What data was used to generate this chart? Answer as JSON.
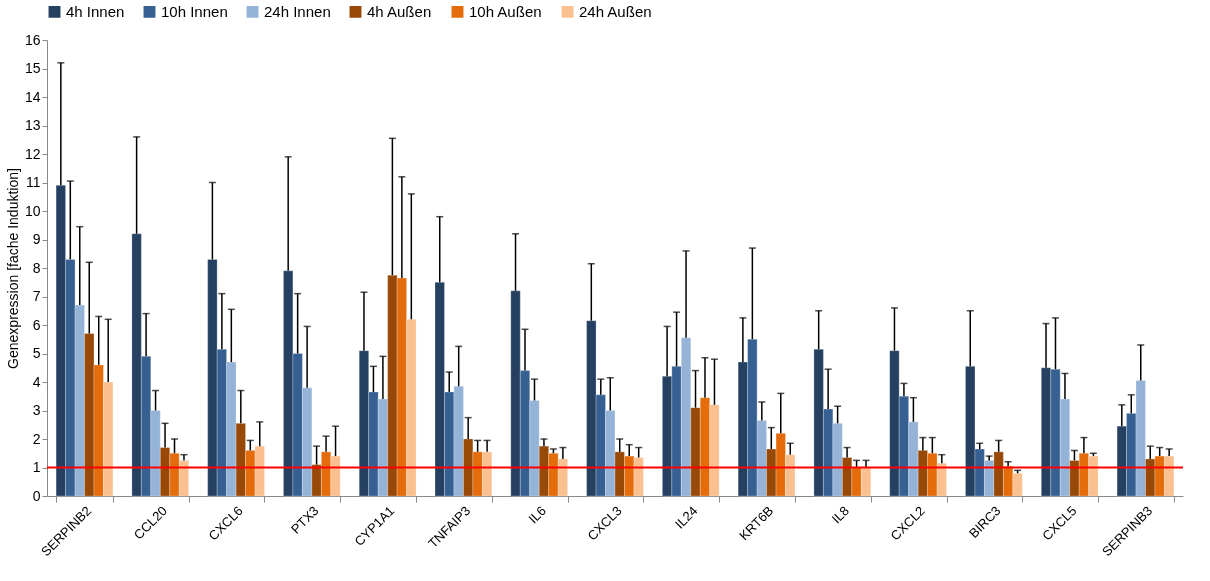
{
  "chart_data": {
    "type": "bar",
    "ylabel": "Genexpression [fache Induktion]",
    "categories": [
      "SERPINB2",
      "CCL20",
      "CXCL6",
      "PTX3",
      "CYP1A1",
      "TNFAIP3",
      "IL6",
      "CXCL3",
      "IL24",
      "KRT6B",
      "IL8",
      "CXCL2",
      "BIRC3",
      "CXCL5",
      "SERPINB3"
    ],
    "series": [
      {
        "name": "4h Innen",
        "color": "#254061",
        "values": [
          10.9,
          9.2,
          8.3,
          7.9,
          5.1,
          7.5,
          7.2,
          6.15,
          4.2,
          4.7,
          5.15,
          5.1,
          4.55,
          4.5,
          2.45
        ],
        "errors": [
          [
            10.9,
            15.2
          ],
          [
            9.2,
            12.6
          ],
          [
            8.3,
            11.0
          ],
          [
            7.9,
            11.9
          ],
          [
            5.1,
            7.15
          ],
          [
            7.5,
            9.8
          ],
          [
            7.2,
            9.2
          ],
          [
            6.15,
            8.15
          ],
          [
            4.2,
            5.95
          ],
          [
            4.7,
            6.25
          ],
          [
            5.15,
            6.5
          ],
          [
            5.1,
            6.6
          ],
          [
            4.55,
            6.5
          ],
          [
            4.5,
            6.05
          ],
          [
            2.45,
            3.2
          ]
        ]
      },
      {
        "name": "10h Innen",
        "color": "#376092",
        "values": [
          8.3,
          4.9,
          5.15,
          5.0,
          3.65,
          3.65,
          4.4,
          3.55,
          4.55,
          5.5,
          3.05,
          3.5,
          1.65,
          4.45,
          2.9
        ],
        "errors": [
          [
            8.3,
            11.05
          ],
          [
            4.9,
            6.4
          ],
          [
            5.15,
            7.1
          ],
          [
            5.0,
            7.1
          ],
          [
            3.65,
            4.55
          ],
          [
            3.65,
            4.35
          ],
          [
            4.4,
            5.85
          ],
          [
            3.55,
            4.1
          ],
          [
            4.55,
            6.45
          ],
          [
            5.5,
            8.7
          ],
          [
            3.05,
            4.45
          ],
          [
            3.5,
            3.95
          ],
          [
            1.65,
            1.85
          ],
          [
            4.45,
            6.25
          ],
          [
            2.9,
            3.55
          ]
        ]
      },
      {
        "name": "24h Innen",
        "color": "#95b3d7",
        "values": [
          6.7,
          3.0,
          4.7,
          3.8,
          3.4,
          3.85,
          3.35,
          3.0,
          5.55,
          2.65,
          2.55,
          2.6,
          1.25,
          3.4,
          4.05
        ],
        "errors": [
          [
            6.7,
            9.45
          ],
          [
            3.0,
            3.7
          ],
          [
            4.7,
            6.55
          ],
          [
            3.8,
            5.95
          ],
          [
            3.4,
            4.9
          ],
          [
            3.85,
            5.25
          ],
          [
            3.35,
            4.1
          ],
          [
            3.0,
            4.15
          ],
          [
            5.55,
            8.6
          ],
          [
            2.65,
            3.3
          ],
          [
            2.55,
            3.15
          ],
          [
            2.6,
            3.45
          ],
          [
            1.25,
            1.4
          ],
          [
            3.4,
            4.3
          ],
          [
            4.05,
            5.3
          ]
        ]
      },
      {
        "name": "4h Außen",
        "color": "#984807",
        "values": [
          5.7,
          1.7,
          2.55,
          1.1,
          7.75,
          2.0,
          1.75,
          1.55,
          3.1,
          1.65,
          1.35,
          1.6,
          1.55,
          1.25,
          1.3
        ],
        "errors": [
          [
            5.7,
            8.2
          ],
          [
            1.7,
            2.55
          ],
          [
            2.55,
            3.7
          ],
          [
            1.1,
            1.75
          ],
          [
            7.75,
            12.55
          ],
          [
            2.0,
            2.75
          ],
          [
            1.75,
            2.0
          ],
          [
            1.55,
            2.0
          ],
          [
            3.1,
            4.4
          ],
          [
            1.65,
            2.4
          ],
          [
            1.35,
            1.7
          ],
          [
            1.6,
            2.05
          ],
          [
            1.55,
            1.95
          ],
          [
            1.25,
            1.6
          ],
          [
            1.3,
            1.75
          ]
        ]
      },
      {
        "name": "10h Außen",
        "color": "#e46c0a",
        "values": [
          4.6,
          1.5,
          1.6,
          1.55,
          7.65,
          1.55,
          1.5,
          1.4,
          3.45,
          2.2,
          1.0,
          1.5,
          1.05,
          1.5,
          1.4
        ],
        "errors": [
          [
            4.6,
            6.3
          ],
          [
            1.5,
            2.0
          ],
          [
            1.6,
            1.95
          ],
          [
            1.55,
            2.1
          ],
          [
            7.65,
            11.2
          ],
          [
            1.55,
            1.95
          ],
          [
            1.5,
            1.65
          ],
          [
            1.4,
            1.8
          ],
          [
            3.45,
            4.85
          ],
          [
            2.2,
            3.6
          ],
          [
            1.0,
            1.25
          ],
          [
            1.5,
            2.05
          ],
          [
            1.05,
            1.2
          ],
          [
            1.5,
            2.05
          ],
          [
            1.4,
            1.7
          ]
        ]
      },
      {
        "name": "24h Außen",
        "color": "#fac090",
        "values": [
          4.0,
          1.25,
          1.75,
          1.4,
          6.2,
          1.55,
          1.3,
          1.35,
          3.2,
          1.45,
          1.0,
          1.15,
          0.8,
          1.4,
          1.4
        ],
        "errors": [
          [
            4.0,
            6.2
          ],
          [
            1.25,
            1.45
          ],
          [
            1.75,
            2.6
          ],
          [
            1.4,
            2.45
          ],
          [
            6.2,
            10.6
          ],
          [
            1.55,
            1.95
          ],
          [
            1.3,
            1.7
          ],
          [
            1.35,
            1.7
          ],
          [
            3.2,
            4.8
          ],
          [
            1.45,
            1.85
          ],
          [
            1.0,
            1.25
          ],
          [
            1.15,
            1.45
          ],
          [
            0.8,
            0.9
          ],
          [
            1.4,
            1.5
          ],
          [
            1.4,
            1.65
          ]
        ]
      }
    ],
    "ylim": [
      0,
      16
    ],
    "yticks": [
      0,
      1,
      2,
      3,
      4,
      5,
      6,
      7,
      8,
      9,
      10,
      11,
      12,
      13,
      14,
      15,
      16
    ],
    "ref_lines": [
      {
        "axis": "y",
        "value": 1,
        "color": "#ff0000"
      }
    ],
    "legend": "top",
    "grid": false
  }
}
